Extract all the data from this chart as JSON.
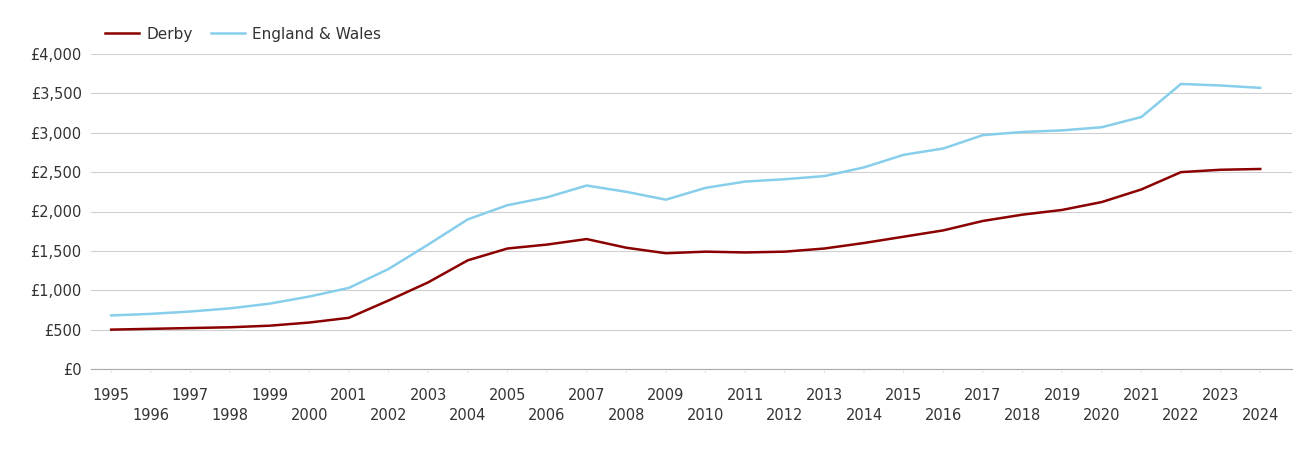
{
  "derby_years": [
    1995,
    1996,
    1997,
    1998,
    1999,
    2000,
    2001,
    2002,
    2003,
    2004,
    2005,
    2006,
    2007,
    2008,
    2009,
    2010,
    2011,
    2012,
    2013,
    2014,
    2015,
    2016,
    2017,
    2018,
    2019,
    2020,
    2021,
    2022,
    2023,
    2024
  ],
  "derby_values": [
    500,
    510,
    520,
    530,
    550,
    590,
    650,
    870,
    1100,
    1380,
    1530,
    1580,
    1650,
    1540,
    1470,
    1490,
    1480,
    1490,
    1530,
    1600,
    1680,
    1760,
    1880,
    1960,
    2020,
    2120,
    2280,
    2500,
    2530,
    2540
  ],
  "ew_years": [
    1995,
    1996,
    1997,
    1998,
    1999,
    2000,
    2001,
    2002,
    2003,
    2004,
    2005,
    2006,
    2007,
    2008,
    2009,
    2010,
    2011,
    2012,
    2013,
    2014,
    2015,
    2016,
    2017,
    2018,
    2019,
    2020,
    2021,
    2022,
    2023,
    2024
  ],
  "ew_values": [
    680,
    700,
    730,
    770,
    830,
    920,
    1030,
    1270,
    1580,
    1900,
    2080,
    2180,
    2330,
    2250,
    2150,
    2300,
    2380,
    2410,
    2450,
    2560,
    2720,
    2800,
    2970,
    3010,
    3030,
    3070,
    3200,
    3620,
    3600,
    3570
  ],
  "derby_color": "#8B0000",
  "ew_color": "#87CEEB",
  "derby_label": "Derby",
  "ew_label": "England & Wales",
  "ylim": [
    0,
    4000
  ],
  "yticks": [
    0,
    500,
    1000,
    1500,
    2000,
    2500,
    3000,
    3500,
    4000
  ],
  "ytick_labels": [
    "£0",
    "£500",
    "£1,000",
    "£1,500",
    "£2,000",
    "£2,500",
    "£3,000",
    "£3,500",
    "£4,000"
  ],
  "xticks_row1": [
    1995,
    1997,
    1999,
    2001,
    2003,
    2005,
    2007,
    2009,
    2011,
    2013,
    2015,
    2017,
    2019,
    2021,
    2023
  ],
  "xticks_row2": [
    1996,
    1998,
    2000,
    2002,
    2004,
    2006,
    2008,
    2010,
    2012,
    2014,
    2016,
    2018,
    2020,
    2022,
    2024
  ],
  "xlim": [
    1994.5,
    2024.8
  ],
  "background_color": "#ffffff",
  "grid_color": "#d0d0d0",
  "line_width": 1.8,
  "legend_fontsize": 11,
  "tick_fontsize": 10.5,
  "text_color": "#333333"
}
